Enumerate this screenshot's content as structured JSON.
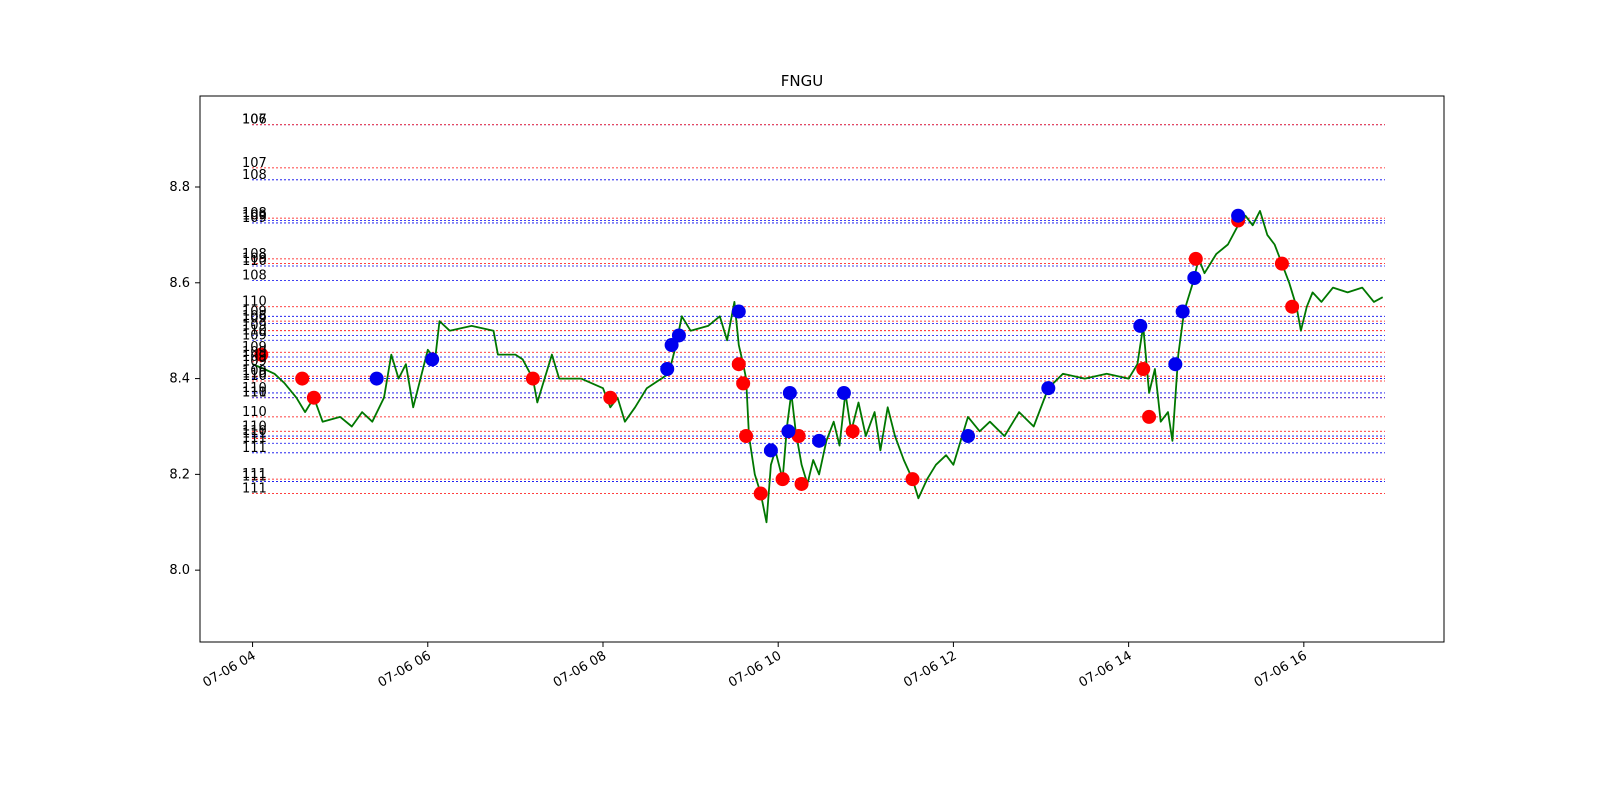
{
  "chart_data": {
    "type": "line",
    "title": "FNGU",
    "xlabel": "",
    "ylabel": "",
    "x_ticks": [
      "07-06 04",
      "07-06 06",
      "07-06 08",
      "07-06 10",
      "07-06 12",
      "07-06 14",
      "07-06 16"
    ],
    "x_range": [
      "07-06 03:24",
      "07-06 17:36"
    ],
    "ylim": [
      7.85,
      8.99
    ],
    "y_ticks": [
      8.0,
      8.2,
      8.4,
      8.6,
      8.8
    ],
    "grid": false,
    "legend": "none",
    "colors": {
      "line": "#007700",
      "buy": "#ff0000",
      "sell": "#0000ee"
    },
    "price_series": {
      "color": "#007700",
      "points": [
        [
          "07-06 04:00",
          8.43
        ],
        [
          "07-06 04:08",
          8.42
        ],
        [
          "07-06 04:15",
          8.41
        ],
        [
          "07-06 04:22",
          8.39
        ],
        [
          "07-06 04:30",
          8.36
        ],
        [
          "07-06 04:36",
          8.33
        ],
        [
          "07-06 04:42",
          8.36
        ],
        [
          "07-06 04:48",
          8.31
        ],
        [
          "07-06 05:00",
          8.32
        ],
        [
          "07-06 05:08",
          8.3
        ],
        [
          "07-06 05:15",
          8.33
        ],
        [
          "07-06 05:22",
          8.31
        ],
        [
          "07-06 05:30",
          8.36
        ],
        [
          "07-06 05:35",
          8.45
        ],
        [
          "07-06 05:40",
          8.4
        ],
        [
          "07-06 05:45",
          8.43
        ],
        [
          "07-06 05:50",
          8.34
        ],
        [
          "07-06 05:55",
          8.4
        ],
        [
          "07-06 06:00",
          8.46
        ],
        [
          "07-06 06:05",
          8.44
        ],
        [
          "07-06 06:08",
          8.52
        ],
        [
          "07-06 06:15",
          8.5
        ],
        [
          "07-06 06:30",
          8.51
        ],
        [
          "07-06 06:45",
          8.5
        ],
        [
          "07-06 06:48",
          8.45
        ],
        [
          "07-06 07:00",
          8.45
        ],
        [
          "07-06 07:05",
          8.44
        ],
        [
          "07-06 07:12",
          8.4
        ],
        [
          "07-06 07:15",
          8.35
        ],
        [
          "07-06 07:20",
          8.4
        ],
        [
          "07-06 07:25",
          8.45
        ],
        [
          "07-06 07:30",
          8.4
        ],
        [
          "07-06 07:45",
          8.4
        ],
        [
          "07-06 08:00",
          8.38
        ],
        [
          "07-06 08:05",
          8.34
        ],
        [
          "07-06 08:10",
          8.36
        ],
        [
          "07-06 08:15",
          8.31
        ],
        [
          "07-06 08:22",
          8.34
        ],
        [
          "07-06 08:30",
          8.38
        ],
        [
          "07-06 08:40",
          8.4
        ],
        [
          "07-06 08:45",
          8.41
        ],
        [
          "07-06 08:50",
          8.47
        ],
        [
          "07-06 08:54",
          8.53
        ],
        [
          "07-06 09:00",
          8.5
        ],
        [
          "07-06 09:12",
          8.51
        ],
        [
          "07-06 09:20",
          8.53
        ],
        [
          "07-06 09:25",
          8.48
        ],
        [
          "07-06 09:30",
          8.56
        ],
        [
          "07-06 09:33",
          8.47
        ],
        [
          "07-06 09:36",
          8.43
        ],
        [
          "07-06 09:38",
          8.4
        ],
        [
          "07-06 09:40",
          8.28
        ],
        [
          "07-06 09:44",
          8.2
        ],
        [
          "07-06 09:48",
          8.16
        ],
        [
          "07-06 09:52",
          8.1
        ],
        [
          "07-06 09:55",
          8.22
        ],
        [
          "07-06 09:58",
          8.25
        ],
        [
          "07-06 10:03",
          8.19
        ],
        [
          "07-06 10:06",
          8.3
        ],
        [
          "07-06 10:09",
          8.37
        ],
        [
          "07-06 10:12",
          8.29
        ],
        [
          "07-06 10:16",
          8.22
        ],
        [
          "07-06 10:20",
          8.18
        ],
        [
          "07-06 10:24",
          8.23
        ],
        [
          "07-06 10:28",
          8.2
        ],
        [
          "07-06 10:33",
          8.27
        ],
        [
          "07-06 10:38",
          8.31
        ],
        [
          "07-06 10:42",
          8.26
        ],
        [
          "07-06 10:46",
          8.37
        ],
        [
          "07-06 10:50",
          8.29
        ],
        [
          "07-06 10:55",
          8.35
        ],
        [
          "07-06 11:00",
          8.28
        ],
        [
          "07-06 11:06",
          8.33
        ],
        [
          "07-06 11:10",
          8.25
        ],
        [
          "07-06 11:15",
          8.34
        ],
        [
          "07-06 11:20",
          8.28
        ],
        [
          "07-06 11:26",
          8.23
        ],
        [
          "07-06 11:32",
          8.19
        ],
        [
          "07-06 11:36",
          8.15
        ],
        [
          "07-06 11:42",
          8.19
        ],
        [
          "07-06 11:48",
          8.22
        ],
        [
          "07-06 11:55",
          8.24
        ],
        [
          "07-06 12:00",
          8.22
        ],
        [
          "07-06 12:05",
          8.27
        ],
        [
          "07-06 12:10",
          8.32
        ],
        [
          "07-06 12:18",
          8.29
        ],
        [
          "07-06 12:25",
          8.31
        ],
        [
          "07-06 12:35",
          8.28
        ],
        [
          "07-06 12:45",
          8.33
        ],
        [
          "07-06 12:55",
          8.3
        ],
        [
          "07-06 13:05",
          8.38
        ],
        [
          "07-06 13:15",
          8.41
        ],
        [
          "07-06 13:30",
          8.4
        ],
        [
          "07-06 13:45",
          8.41
        ],
        [
          "07-06 14:00",
          8.4
        ],
        [
          "07-06 14:06",
          8.43
        ],
        [
          "07-06 14:10",
          8.51
        ],
        [
          "07-06 14:14",
          8.37
        ],
        [
          "07-06 14:18",
          8.42
        ],
        [
          "07-06 14:22",
          8.31
        ],
        [
          "07-06 14:27",
          8.33
        ],
        [
          "07-06 14:30",
          8.27
        ],
        [
          "07-06 14:34",
          8.45
        ],
        [
          "07-06 14:38",
          8.54
        ],
        [
          "07-06 14:44",
          8.6
        ],
        [
          "07-06 14:48",
          8.65
        ],
        [
          "07-06 14:52",
          8.62
        ],
        [
          "07-06 15:00",
          8.66
        ],
        [
          "07-06 15:08",
          8.68
        ],
        [
          "07-06 15:15",
          8.72
        ],
        [
          "07-06 15:20",
          8.74
        ],
        [
          "07-06 15:25",
          8.72
        ],
        [
          "07-06 15:30",
          8.75
        ],
        [
          "07-06 15:35",
          8.7
        ],
        [
          "07-06 15:40",
          8.68
        ],
        [
          "07-06 15:45",
          8.64
        ],
        [
          "07-06 15:50",
          8.6
        ],
        [
          "07-06 15:55",
          8.55
        ],
        [
          "07-06 15:58",
          8.5
        ],
        [
          "07-06 16:02",
          8.55
        ],
        [
          "07-06 16:06",
          8.58
        ],
        [
          "07-06 16:12",
          8.56
        ],
        [
          "07-06 16:20",
          8.59
        ],
        [
          "07-06 16:30",
          8.58
        ],
        [
          "07-06 16:40",
          8.59
        ],
        [
          "07-06 16:48",
          8.56
        ],
        [
          "07-06 16:54",
          8.57
        ]
      ]
    },
    "buy_markers": [
      [
        "07-06 04:06",
        8.45
      ],
      [
        "07-06 04:34",
        8.4
      ],
      [
        "07-06 04:42",
        8.36
      ],
      [
        "07-06 07:12",
        8.4
      ],
      [
        "07-06 08:05",
        8.36
      ],
      [
        "07-06 09:33",
        8.43
      ],
      [
        "07-06 09:36",
        8.39
      ],
      [
        "07-06 09:38",
        8.28
      ],
      [
        "07-06 09:48",
        8.16
      ],
      [
        "07-06 10:03",
        8.19
      ],
      [
        "07-06 10:14",
        8.28
      ],
      [
        "07-06 10:16",
        8.18
      ],
      [
        "07-06 10:51",
        8.29
      ],
      [
        "07-06 11:32",
        8.19
      ],
      [
        "07-06 14:10",
        8.42
      ],
      [
        "07-06 14:14",
        8.32
      ],
      [
        "07-06 14:46",
        8.65
      ],
      [
        "07-06 15:15",
        8.73
      ],
      [
        "07-06 15:45",
        8.64
      ],
      [
        "07-06 15:52",
        8.55
      ]
    ],
    "sell_markers": [
      [
        "07-06 05:25",
        8.4
      ],
      [
        "07-06 06:03",
        8.44
      ],
      [
        "07-06 08:44",
        8.42
      ],
      [
        "07-06 08:47",
        8.47
      ],
      [
        "07-06 08:52",
        8.49
      ],
      [
        "07-06 09:33",
        8.54
      ],
      [
        "07-06 09:55",
        8.25
      ],
      [
        "07-06 10:07",
        8.29
      ],
      [
        "07-06 10:08",
        8.37
      ],
      [
        "07-06 10:28",
        8.27
      ],
      [
        "07-06 10:45",
        8.37
      ],
      [
        "07-06 12:10",
        8.28
      ],
      [
        "07-06 13:05",
        8.38
      ],
      [
        "07-06 14:08",
        8.51
      ],
      [
        "07-06 14:32",
        8.43
      ],
      [
        "07-06 14:37",
        8.54
      ],
      [
        "07-06 14:45",
        8.61
      ],
      [
        "07-06 15:15",
        8.74
      ]
    ],
    "level_lines": [
      {
        "y": 8.93,
        "label": "106",
        "color": "#0000ee"
      },
      {
        "y": 8.93,
        "label": "107",
        "color": "#ff0000"
      },
      {
        "y": 8.84,
        "label": "107",
        "color": "#ff0000"
      },
      {
        "y": 8.815,
        "label": "108",
        "color": "#0000ee"
      },
      {
        "y": 8.735,
        "label": "108",
        "color": "#ff0000"
      },
      {
        "y": 8.73,
        "label": "109",
        "color": "#0000ee"
      },
      {
        "y": 8.725,
        "label": "109",
        "color": "#0000ee"
      },
      {
        "y": 8.65,
        "label": "108",
        "color": "#ff0000"
      },
      {
        "y": 8.64,
        "label": "109",
        "color": "#ff0000"
      },
      {
        "y": 8.635,
        "label": "110",
        "color": "#0000ee"
      },
      {
        "y": 8.605,
        "label": "108",
        "color": "#0000ee"
      },
      {
        "y": 8.55,
        "label": "110",
        "color": "#ff0000"
      },
      {
        "y": 8.53,
        "label": "109",
        "color": "#0000ee"
      },
      {
        "y": 8.52,
        "label": "108",
        "color": "#ff0000"
      },
      {
        "y": 8.515,
        "label": "109",
        "color": "#0000ee"
      },
      {
        "y": 8.5,
        "label": "109",
        "color": "#ff0000"
      },
      {
        "y": 8.49,
        "label": "110",
        "color": "#0000ee"
      },
      {
        "y": 8.48,
        "label": "109",
        "color": "#0000ee"
      },
      {
        "y": 8.455,
        "label": "109",
        "color": "#ff0000"
      },
      {
        "y": 8.445,
        "label": "109",
        "color": "#0000ee"
      },
      {
        "y": 8.435,
        "label": "109",
        "color": "#ff0000"
      },
      {
        "y": 8.425,
        "label": "109",
        "color": "#0000ee"
      },
      {
        "y": 8.405,
        "label": "109",
        "color": "#ff0000"
      },
      {
        "y": 8.4,
        "label": "110",
        "color": "#0000ee"
      },
      {
        "y": 8.395,
        "label": "110",
        "color": "#ff0000"
      },
      {
        "y": 8.37,
        "label": "110",
        "color": "#0000ee"
      },
      {
        "y": 8.36,
        "label": "111",
        "color": "#ff0000"
      },
      {
        "y": 8.36,
        "label": "110",
        "color": "#0000ee"
      },
      {
        "y": 8.32,
        "label": "110",
        "color": "#ff0000"
      },
      {
        "y": 8.29,
        "label": "110",
        "color": "#ff0000"
      },
      {
        "y": 8.28,
        "label": "110",
        "color": "#0000ee"
      },
      {
        "y": 8.275,
        "label": "111",
        "color": "#ff0000"
      },
      {
        "y": 8.265,
        "label": "111",
        "color": "#0000ee"
      },
      {
        "y": 8.245,
        "label": "111",
        "color": "#0000ee"
      },
      {
        "y": 8.19,
        "label": "111",
        "color": "#ff0000"
      },
      {
        "y": 8.185,
        "label": "111",
        "color": "#0000ee"
      },
      {
        "y": 8.16,
        "label": "111",
        "color": "#ff0000"
      }
    ]
  }
}
